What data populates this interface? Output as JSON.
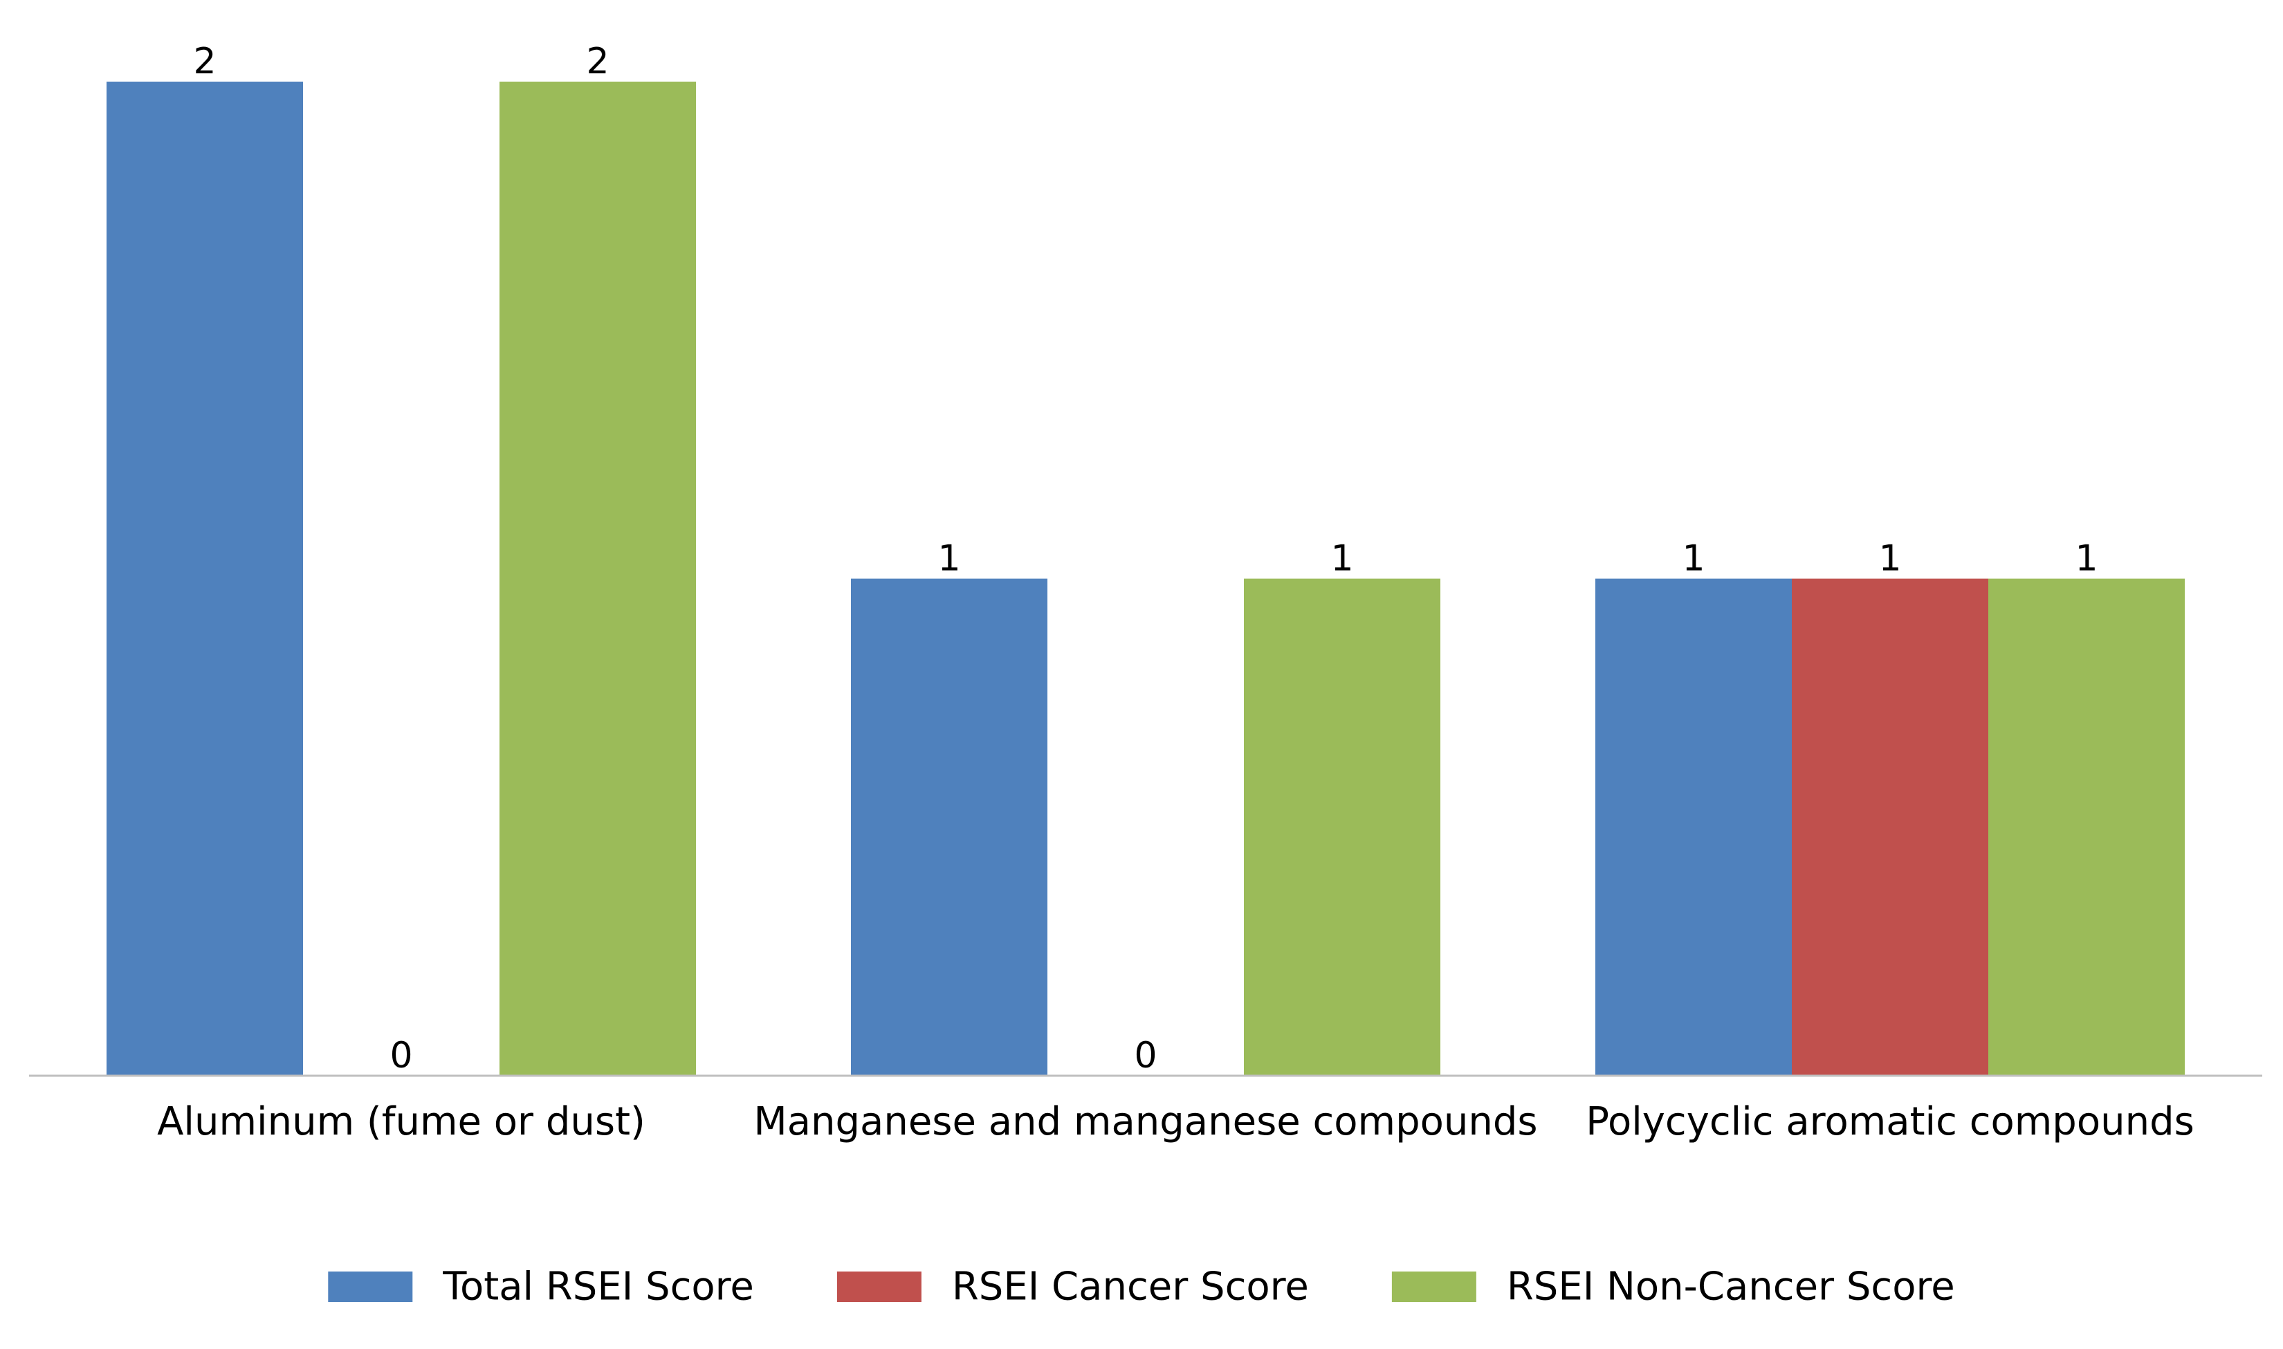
{
  "chart_data": {
    "type": "bar",
    "title": "",
    "xlabel": "",
    "ylabel": "",
    "categories": [
      "Aluminum (fume or dust)",
      "Manganese and manganese compounds",
      "Polycyclic aromatic compounds"
    ],
    "series": [
      {
        "name": "Total RSEI Score",
        "color": "#4f81bd",
        "values": [
          2,
          1,
          1
        ]
      },
      {
        "name": "RSEI Cancer Score",
        "color": "#c0504d",
        "values": [
          0,
          0,
          1
        ]
      },
      {
        "name": "RSEI Non-Cancer Score",
        "color": "#9bbb59",
        "values": [
          2,
          1,
          1
        ]
      }
    ],
    "ylim": [
      0,
      2
    ],
    "y_axis_visible": false,
    "grid": false,
    "data_labels": true,
    "legend_position": "bottom"
  },
  "colors": {
    "axis_line": "#bfbfbf"
  }
}
